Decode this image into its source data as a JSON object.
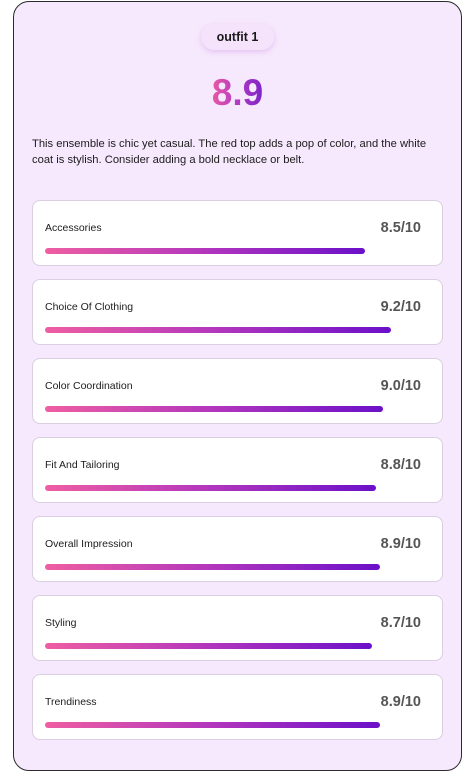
{
  "header": {
    "outfit_label": "outfit 1",
    "overall_score": "8.9"
  },
  "description": "This ensemble is chic yet casual. The red top adds a pop of color, and the white coat is stylish. Consider adding a bold necklace or belt.",
  "scores": [
    {
      "label": "Accessories",
      "value_text": "8.5/10",
      "value": 8.5,
      "max": 10
    },
    {
      "label": "Choice Of Clothing",
      "value_text": "9.2/10",
      "value": 9.2,
      "max": 10
    },
    {
      "label": "Color Coordination",
      "value_text": "9.0/10",
      "value": 9.0,
      "max": 10
    },
    {
      "label": "Fit And Tailoring",
      "value_text": "8.8/10",
      "value": 8.8,
      "max": 10
    },
    {
      "label": "Overall Impression",
      "value_text": "8.9/10",
      "value": 8.9,
      "max": 10
    },
    {
      "label": "Styling",
      "value_text": "8.7/10",
      "value": 8.7,
      "max": 10
    },
    {
      "label": "Trendiness",
      "value_text": "8.9/10",
      "value": 8.9,
      "max": 10
    }
  ],
  "colors": {
    "card_background": "#f7e9fd",
    "gradient_start": "#ef5ea2",
    "gradient_mid": "#b236bd",
    "gradient_end": "#6b10c9"
  }
}
